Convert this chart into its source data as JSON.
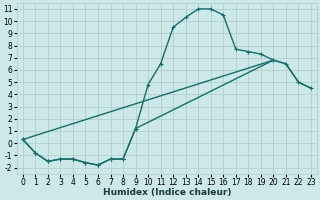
{
  "xlabel": "Humidex (Indice chaleur)",
  "bg_color": "#cce8e8",
  "grid_color": "#aacccc",
  "line_color": "#1a6b6b",
  "xlim": [
    -0.5,
    23.5
  ],
  "ylim": [
    -2.5,
    11.5
  ],
  "xticks": [
    0,
    1,
    2,
    3,
    4,
    5,
    6,
    7,
    8,
    9,
    10,
    11,
    12,
    13,
    14,
    15,
    16,
    17,
    18,
    19,
    20,
    21,
    22,
    23
  ],
  "yticks": [
    -2,
    -1,
    0,
    1,
    2,
    3,
    4,
    5,
    6,
    7,
    8,
    9,
    10,
    11
  ],
  "line1_x": [
    0,
    1,
    2,
    3,
    4,
    5,
    6,
    7,
    8,
    9,
    10,
    11,
    12,
    13,
    14,
    15,
    16,
    17,
    18,
    19,
    20
  ],
  "line1_y": [
    0.3,
    -0.8,
    -1.5,
    -1.3,
    -1.3,
    -1.6,
    -1.8,
    -1.3,
    -1.3,
    1.2,
    4.8,
    6.5,
    9.5,
    10.3,
    11.0,
    11.0,
    10.5,
    7.7,
    7.5,
    7.3,
    6.8
  ],
  "line2_x": [
    0,
    1,
    2,
    3,
    4,
    5,
    6,
    7,
    8,
    9,
    20,
    21,
    22,
    23
  ],
  "line2_y": [
    0.3,
    -0.8,
    -1.5,
    -1.3,
    -1.3,
    -1.6,
    -1.8,
    -1.3,
    -1.3,
    1.2,
    6.8,
    6.5,
    5.0,
    4.5
  ],
  "line3_x": [
    0,
    20,
    21,
    22,
    23
  ],
  "line3_y": [
    0.3,
    6.8,
    6.5,
    5.0,
    4.5
  ],
  "xlabel_color": "#1a3a3a",
  "xlabel_fontsize": 6.5,
  "tick_fontsize": 5.5
}
